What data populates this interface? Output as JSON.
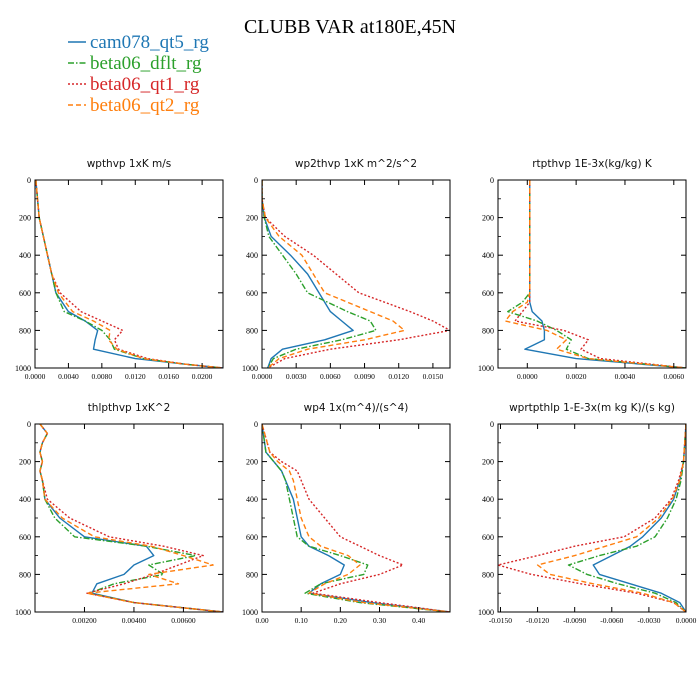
{
  "figure": {
    "title": "CLUBB VAR at180E,45N",
    "legend": [
      {
        "name": "cam078_qt5_rg",
        "color": "#1f77b4",
        "dash": "solid"
      },
      {
        "name": "beta06_dflt_rg",
        "color": "#2ca02c",
        "dash": "dashdot"
      },
      {
        "name": "beta06_qt1_rg",
        "color": "#d62728",
        "dash": "dotted"
      },
      {
        "name": "beta06_qt2_rg",
        "color": "#ff7f0e",
        "dash": "dashed"
      }
    ]
  },
  "chart_data": [
    {
      "type": "line",
      "title": "wpthvp   1xK m/s",
      "xlim": [
        0,
        0.0225
      ],
      "ylim": [
        1000,
        0
      ],
      "y_ticks": [
        0,
        200,
        400,
        600,
        800,
        1000
      ],
      "x_ticks": [
        "0.0000",
        "0.0040",
        "0.0080",
        "0.0120",
        "0.0160",
        "0.0200"
      ],
      "x_tick_values": [
        0,
        0.004,
        0.008,
        0.012,
        0.016,
        0.02
      ],
      "series": [
        {
          "y": [
            0,
            100,
            200,
            300,
            400,
            500,
            600,
            700,
            750,
            800,
            850,
            900,
            950,
            980,
            1000
          ],
          "x": [
            0.0001,
            0.0003,
            0.0005,
            0.001,
            0.0015,
            0.002,
            0.0025,
            0.004,
            0.006,
            0.0075,
            0.0072,
            0.007,
            0.012,
            0.018,
            0.0225
          ]
        },
        {
          "y": [
            0,
            100,
            200,
            300,
            400,
            500,
            600,
            700,
            750,
            800,
            850,
            900,
            950,
            980,
            1000
          ],
          "x": [
            0.0001,
            0.0003,
            0.0005,
            0.001,
            0.0015,
            0.002,
            0.0025,
            0.0035,
            0.006,
            0.008,
            0.009,
            0.0095,
            0.013,
            0.018,
            0.0225
          ]
        },
        {
          "y": [
            0,
            100,
            200,
            300,
            400,
            500,
            600,
            700,
            750,
            800,
            850,
            900,
            950,
            980,
            1000
          ],
          "x": [
            0.0001,
            0.0003,
            0.0005,
            0.001,
            0.0015,
            0.002,
            0.003,
            0.0055,
            0.008,
            0.0105,
            0.0095,
            0.01,
            0.0135,
            0.018,
            0.0225
          ]
        },
        {
          "y": [
            0,
            100,
            200,
            300,
            400,
            500,
            600,
            700,
            750,
            800,
            850,
            900,
            950,
            980,
            1000
          ],
          "x": [
            0.0001,
            0.0003,
            0.0005,
            0.001,
            0.0015,
            0.002,
            0.0028,
            0.0045,
            0.007,
            0.009,
            0.0088,
            0.0098,
            0.013,
            0.018,
            0.0225
          ]
        }
      ]
    },
    {
      "type": "line",
      "title": "wp2thvp   1xK m^2/s^2",
      "xlim": [
        0,
        0.0165
      ],
      "ylim": [
        1000,
        0
      ],
      "y_ticks": [
        0,
        200,
        400,
        600,
        800,
        1000
      ],
      "x_ticks": [
        "0.0000",
        "0.0030",
        "0.0060",
        "0.0090",
        "0.0120",
        "0.0150"
      ],
      "x_tick_values": [
        0,
        0.003,
        0.006,
        0.009,
        0.012,
        0.015
      ],
      "series": [
        {
          "y": [
            0,
            100,
            200,
            300,
            400,
            500,
            600,
            700,
            750,
            800,
            850,
            900,
            950,
            1000
          ],
          "x": [
            0,
            0,
            0.0002,
            0.0008,
            0.0025,
            0.004,
            0.005,
            0.006,
            0.007,
            0.008,
            0.0055,
            0.0018,
            0.0008,
            0.0005
          ]
        },
        {
          "y": [
            0,
            100,
            200,
            300,
            400,
            500,
            600,
            700,
            750,
            800,
            850,
            900,
            950,
            1000
          ],
          "x": [
            0,
            0,
            0.0002,
            0.0006,
            0.0018,
            0.003,
            0.004,
            0.0075,
            0.0095,
            0.01,
            0.007,
            0.003,
            0.001,
            0.0005
          ]
        },
        {
          "y": [
            0,
            100,
            200,
            300,
            400,
            500,
            600,
            700,
            750,
            800,
            850,
            900,
            950,
            1000
          ],
          "x": [
            0,
            0,
            0.0003,
            0.002,
            0.0045,
            0.0065,
            0.0085,
            0.013,
            0.015,
            0.0165,
            0.012,
            0.006,
            0.002,
            0.0005
          ]
        },
        {
          "y": [
            0,
            100,
            200,
            300,
            400,
            500,
            600,
            700,
            750,
            800,
            850,
            900,
            950,
            1000
          ],
          "x": [
            0,
            0,
            0.0003,
            0.0015,
            0.0035,
            0.0045,
            0.0055,
            0.0095,
            0.0115,
            0.0125,
            0.009,
            0.004,
            0.0015,
            0.0005
          ]
        }
      ]
    },
    {
      "type": "line",
      "title": "rtpthvp   1E-3x(kg/kg) K",
      "xlim": [
        -0.0012,
        0.0065
      ],
      "ylim": [
        1000,
        0
      ],
      "y_ticks": [
        0,
        200,
        400,
        600,
        800,
        1000
      ],
      "x_ticks": [
        "0.0000",
        "0.0020",
        "0.0040",
        "0.0060"
      ],
      "x_tick_values": [
        0,
        0.002,
        0.004,
        0.006
      ],
      "series": [
        {
          "y": [
            0,
            100,
            200,
            300,
            400,
            500,
            600,
            650,
            700,
            750,
            800,
            850,
            900,
            950,
            1000
          ],
          "x": [
            0.0001,
            0.0001,
            0.0001,
            0.0001,
            0.0001,
            0.0001,
            0.0001,
            0.0001,
            0.0002,
            0.0006,
            0.0007,
            0.0007,
            -0.0001,
            0.002,
            0.0065
          ]
        },
        {
          "y": [
            0,
            100,
            200,
            300,
            400,
            500,
            600,
            650,
            700,
            750,
            800,
            850,
            900,
            950,
            1000
          ],
          "x": [
            0.0001,
            0.0001,
            0.0001,
            0.0001,
            0.0001,
            0.0001,
            0.0001,
            -0.0002,
            -0.0008,
            0.0004,
            0.0012,
            0.0018,
            0.0016,
            0.0025,
            0.0065
          ]
        },
        {
          "y": [
            0,
            100,
            200,
            300,
            400,
            500,
            600,
            650,
            700,
            750,
            800,
            850,
            900,
            950,
            1000
          ],
          "x": [
            0.0001,
            0.0001,
            0.0001,
            0.0001,
            0.0001,
            0.0001,
            0.0001,
            0.0001,
            -0.0002,
            -0.0005,
            0.0015,
            0.0025,
            0.0022,
            0.003,
            0.0065
          ]
        },
        {
          "y": [
            0,
            100,
            200,
            300,
            400,
            500,
            600,
            650,
            700,
            750,
            800,
            850,
            900,
            950,
            1000
          ],
          "x": [
            0.0001,
            0.0001,
            0.0001,
            0.0001,
            0.0001,
            0.0001,
            0.0001,
            0.0,
            -0.0006,
            -0.0009,
            0.0008,
            0.0016,
            0.0012,
            0.0025,
            0.0065
          ]
        }
      ]
    },
    {
      "type": "line",
      "title": "thlpthvp   1xK^2",
      "xlim": [
        0,
        0.0076
      ],
      "ylim": [
        1000,
        0
      ],
      "y_ticks": [
        0,
        200,
        400,
        600,
        800,
        1000
      ],
      "x_ticks": [
        "0.00200",
        "0.00400",
        "0.00600"
      ],
      "x_tick_values": [
        0.002,
        0.004,
        0.006
      ],
      "series": [
        {
          "y": [
            0,
            50,
            100,
            150,
            200,
            250,
            300,
            400,
            500,
            600,
            650,
            700,
            750,
            800,
            850,
            900,
            950,
            1000
          ],
          "x": [
            0.0002,
            0.0005,
            0.0003,
            0.0002,
            0.0003,
            0.0002,
            0.0003,
            0.0004,
            0.001,
            0.002,
            0.0045,
            0.0048,
            0.004,
            0.0036,
            0.0025,
            0.0023,
            0.004,
            0.0076
          ]
        },
        {
          "y": [
            0,
            50,
            100,
            150,
            200,
            250,
            300,
            400,
            500,
            600,
            650,
            700,
            750,
            800,
            850,
            900,
            950,
            1000
          ],
          "x": [
            0.0002,
            0.0005,
            0.0003,
            0.0002,
            0.0003,
            0.0002,
            0.0003,
            0.0004,
            0.0008,
            0.0016,
            0.0045,
            0.0065,
            0.0046,
            0.0052,
            0.0032,
            0.0022,
            0.004,
            0.0076
          ]
        },
        {
          "y": [
            0,
            50,
            100,
            150,
            200,
            250,
            300,
            400,
            500,
            600,
            650,
            700,
            750,
            800,
            850,
            900,
            950,
            1000
          ],
          "x": [
            0.0002,
            0.0005,
            0.0003,
            0.0002,
            0.0003,
            0.0002,
            0.0003,
            0.0005,
            0.0014,
            0.003,
            0.0052,
            0.0068,
            0.0058,
            0.0048,
            0.0036,
            0.0021,
            0.004,
            0.0076
          ]
        },
        {
          "y": [
            0,
            50,
            100,
            150,
            200,
            250,
            300,
            400,
            500,
            600,
            650,
            700,
            750,
            800,
            850,
            900,
            950,
            1000
          ],
          "x": [
            0.0002,
            0.0005,
            0.0003,
            0.0002,
            0.0003,
            0.0002,
            0.0003,
            0.0004,
            0.0011,
            0.0024,
            0.0047,
            0.006,
            0.0072,
            0.0046,
            0.0058,
            0.0021,
            0.004,
            0.0076
          ]
        }
      ]
    },
    {
      "type": "line",
      "title": "wp4   1x(m^4)/(s^4)",
      "xlim": [
        0,
        0.48
      ],
      "ylim": [
        1000,
        0
      ],
      "y_ticks": [
        0,
        200,
        400,
        600,
        800,
        1000
      ],
      "x_ticks": [
        "0.00",
        "0.10",
        "0.20",
        "0.30",
        "0.40"
      ],
      "x_tick_values": [
        0,
        0.1,
        0.2,
        0.3,
        0.4
      ],
      "series": [
        {
          "y": [
            0,
            150,
            200,
            250,
            300,
            400,
            500,
            600,
            650,
            700,
            750,
            800,
            850,
            900,
            950,
            1000
          ],
          "x": [
            0.0,
            0.01,
            0.03,
            0.05,
            0.06,
            0.08,
            0.09,
            0.1,
            0.12,
            0.17,
            0.21,
            0.2,
            0.15,
            0.12,
            0.28,
            0.48
          ]
        },
        {
          "y": [
            0,
            150,
            200,
            250,
            300,
            400,
            500,
            600,
            650,
            700,
            750,
            800,
            850,
            900,
            950,
            1000
          ],
          "x": [
            0.0,
            0.01,
            0.03,
            0.05,
            0.06,
            0.07,
            0.08,
            0.09,
            0.12,
            0.2,
            0.27,
            0.26,
            0.15,
            0.11,
            0.25,
            0.48
          ]
        },
        {
          "y": [
            0,
            150,
            200,
            250,
            300,
            400,
            500,
            600,
            650,
            700,
            750,
            800,
            850,
            900,
            950,
            1000
          ],
          "x": [
            0.0,
            0.02,
            0.05,
            0.09,
            0.1,
            0.12,
            0.16,
            0.2,
            0.25,
            0.3,
            0.36,
            0.3,
            0.2,
            0.13,
            0.3,
            0.48
          ]
        },
        {
          "y": [
            0,
            150,
            200,
            250,
            300,
            400,
            500,
            600,
            650,
            700,
            750,
            800,
            850,
            900,
            950,
            1000
          ],
          "x": [
            0.0,
            0.02,
            0.04,
            0.07,
            0.08,
            0.09,
            0.1,
            0.12,
            0.15,
            0.22,
            0.25,
            0.22,
            0.16,
            0.12,
            0.26,
            0.48
          ]
        }
      ]
    },
    {
      "type": "line",
      "title": "wprtpthlp   1-E-3x(m kg K)/(s kg)",
      "xlim": [
        -0.0152,
        0
      ],
      "ylim": [
        1000,
        0
      ],
      "y_ticks": [
        0,
        200,
        400,
        600,
        800,
        1000
      ],
      "x_ticks": [
        "-0.0150",
        "-0.0120",
        "-0.0090",
        "-0.0060",
        "-0.0030",
        "0.0000"
      ],
      "x_tick_values": [
        -0.015,
        -0.012,
        -0.009,
        -0.006,
        -0.003,
        0
      ],
      "series": [
        {
          "y": [
            0,
            100,
            200,
            300,
            400,
            500,
            600,
            650,
            700,
            750,
            800,
            850,
            900,
            950,
            1000
          ],
          "x": [
            0,
            -0.0001,
            -0.0002,
            -0.0005,
            -0.001,
            -0.002,
            -0.0035,
            -0.0045,
            -0.006,
            -0.0075,
            -0.007,
            -0.0045,
            -0.002,
            -0.0005,
            0
          ]
        },
        {
          "y": [
            0,
            100,
            200,
            300,
            400,
            500,
            600,
            650,
            700,
            750,
            800,
            850,
            900,
            950,
            1000
          ],
          "x": [
            0,
            -0.0001,
            -0.0002,
            -0.0004,
            -0.0008,
            -0.0015,
            -0.0025,
            -0.004,
            -0.007,
            -0.0095,
            -0.008,
            -0.0055,
            -0.0025,
            -0.0008,
            0
          ]
        },
        {
          "y": [
            0,
            100,
            200,
            300,
            400,
            500,
            600,
            650,
            700,
            750,
            800,
            850,
            900,
            950,
            1000
          ],
          "x": [
            0,
            -0.0001,
            -0.0002,
            -0.0006,
            -0.0012,
            -0.0025,
            -0.005,
            -0.009,
            -0.012,
            -0.0152,
            -0.0125,
            -0.0085,
            -0.004,
            -0.001,
            0
          ]
        },
        {
          "y": [
            0,
            100,
            200,
            300,
            400,
            500,
            600,
            650,
            700,
            750,
            800,
            850,
            900,
            950,
            1000
          ],
          "x": [
            0,
            -0.0001,
            -0.0002,
            -0.0005,
            -0.0011,
            -0.0022,
            -0.004,
            -0.0065,
            -0.009,
            -0.012,
            -0.011,
            -0.0075,
            -0.0035,
            -0.001,
            0
          ]
        }
      ]
    }
  ]
}
